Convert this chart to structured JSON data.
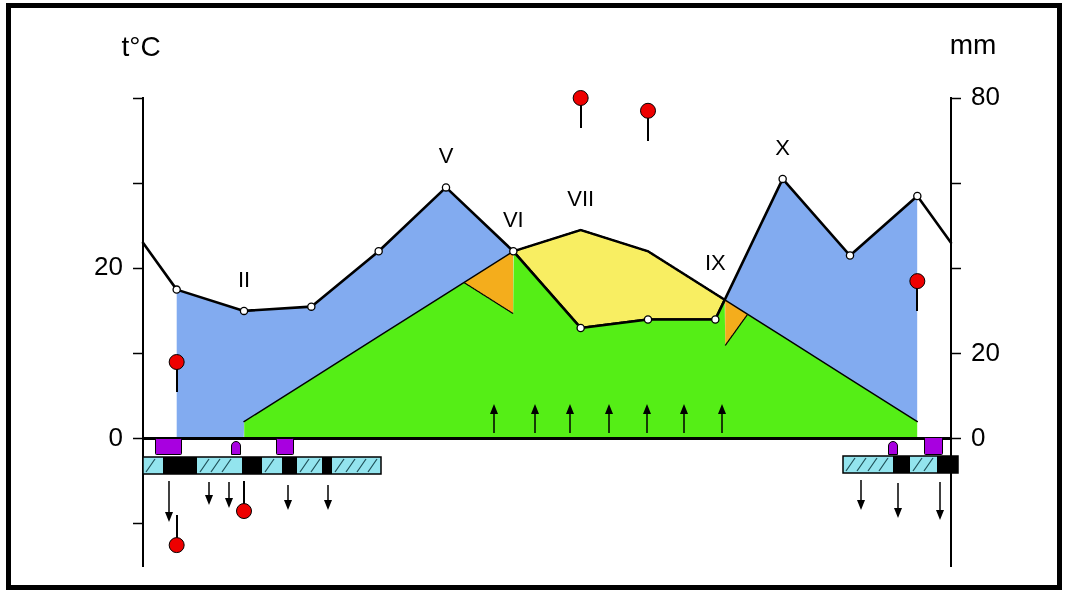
{
  "chart_data": {
    "type": "line",
    "ylabel": "t°C",
    "y2label": "mm",
    "categories": [
      null,
      "II",
      null,
      null,
      "V",
      "VI",
      "VII",
      null,
      "IX",
      "X",
      null,
      null
    ],
    "series": [
      {
        "color": "#000000",
        "axis": "y2",
        "values": [
          35,
          30,
          31,
          44,
          59,
          44,
          26,
          28,
          28,
          61,
          43,
          57
        ]
      },
      {
        "color": "#000000",
        "marker": "none",
        "values": [
          null,
          2,
          7,
          12,
          17,
          22,
          24.5,
          22,
          17,
          12,
          7,
          2
        ]
      },
      {
        "type": "scatter",
        "color": "#ee0000",
        "values": [
          9,
          null,
          null,
          null,
          null,
          null,
          40,
          38.5,
          null,
          null,
          null,
          18.5
        ]
      },
      {
        "type": "scatter",
        "color": "#ee0000",
        "values": [
          -12.5,
          -8.5,
          null,
          null,
          null,
          null,
          null,
          null,
          null,
          null,
          null,
          null
        ]
      }
    ],
    "ylim": [
      -15,
      40
    ],
    "yticks": [
      {
        "value": -10,
        "label": null
      },
      0,
      {
        "value": 10,
        "label": null
      },
      20,
      {
        "value": 30,
        "label": null
      },
      {
        "value": 40,
        "label": null
      }
    ],
    "y2lim": [
      -30,
      80
    ],
    "y2ticks": [
      0,
      20,
      {
        "value": 40,
        "label": null
      },
      {
        "value": 60,
        "label": null
      },
      80
    ],
    "marker": "circle"
  }
}
